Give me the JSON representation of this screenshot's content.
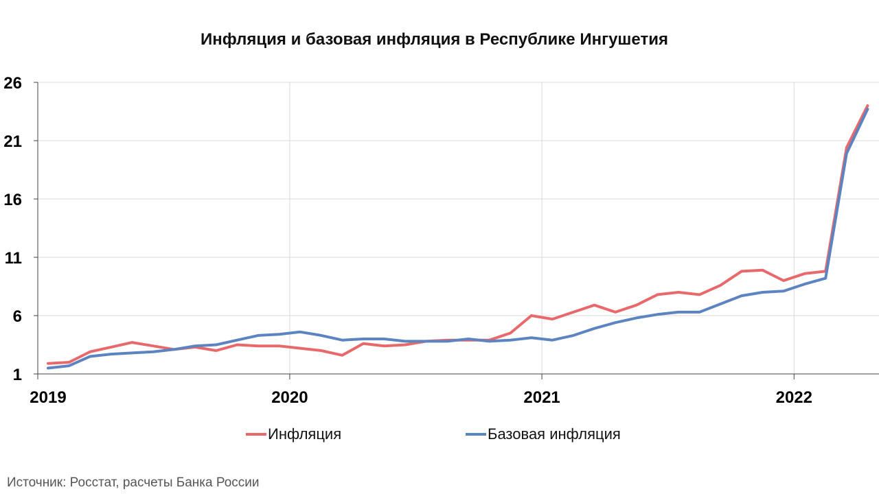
{
  "title": "Инфляция и базовая инфляция в Республике Ингушетия",
  "source": "Источник: Росстат, расчеты Банка России",
  "legend": {
    "inflation": "Инфляция",
    "core": "Базовая инфляция"
  },
  "colors": {
    "inflation": "#e8696b",
    "core": "#5b84c0",
    "grid": "#d9d9d9",
    "axis": "#404040"
  },
  "chart_data": {
    "type": "line",
    "title": "Инфляция и базовая инфляция в Республике Ингушетия",
    "xlabel": "",
    "ylabel": "",
    "ylim": [
      1,
      26
    ],
    "y_ticks": [
      1,
      6,
      11,
      16,
      21,
      26
    ],
    "x_tick_labels": [
      "2019",
      "2020",
      "2021",
      "2022"
    ],
    "x": [
      "2019-01",
      "2019-02",
      "2019-03",
      "2019-04",
      "2019-05",
      "2019-06",
      "2019-07",
      "2019-08",
      "2019-09",
      "2019-10",
      "2019-11",
      "2019-12",
      "2020-01",
      "2020-02",
      "2020-03",
      "2020-04",
      "2020-05",
      "2020-06",
      "2020-07",
      "2020-08",
      "2020-09",
      "2020-10",
      "2020-11",
      "2020-12",
      "2021-01",
      "2021-02",
      "2021-03",
      "2021-04",
      "2021-05",
      "2021-06",
      "2021-07",
      "2021-08",
      "2021-09",
      "2021-10",
      "2021-11",
      "2021-12",
      "2022-01",
      "2022-02",
      "2022-03",
      "2022-04"
    ],
    "grid": true,
    "legend_position": "bottom",
    "series": [
      {
        "name": "Инфляция",
        "color": "#e8696b",
        "values": [
          1.9,
          2.0,
          2.9,
          3.3,
          3.7,
          3.4,
          3.1,
          3.3,
          3.0,
          3.5,
          3.4,
          3.4,
          3.2,
          3.0,
          2.6,
          3.6,
          3.4,
          3.5,
          3.8,
          3.9,
          3.9,
          3.9,
          4.5,
          6.0,
          5.7,
          6.3,
          6.9,
          6.3,
          6.9,
          7.8,
          8.0,
          7.8,
          8.6,
          9.8,
          9.9,
          9.0,
          9.6,
          9.8,
          20.4,
          24.0
        ]
      },
      {
        "name": "Базовая инфляция",
        "color": "#5b84c0",
        "values": [
          1.5,
          1.7,
          2.5,
          2.7,
          2.8,
          2.9,
          3.1,
          3.4,
          3.5,
          3.9,
          4.3,
          4.4,
          4.6,
          4.3,
          3.9,
          4.0,
          4.0,
          3.8,
          3.8,
          3.8,
          4.0,
          3.8,
          3.9,
          4.1,
          3.9,
          4.3,
          4.9,
          5.4,
          5.8,
          6.1,
          6.3,
          6.3,
          7.0,
          7.7,
          8.0,
          8.1,
          8.7,
          9.2,
          19.9,
          23.7
        ]
      }
    ]
  }
}
